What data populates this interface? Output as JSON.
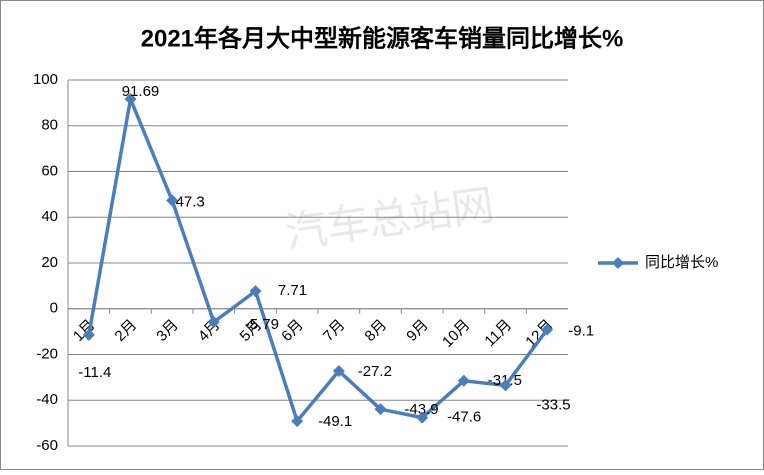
{
  "chart_data": {
    "type": "line",
    "title": "2021年各月大中型新能源客车销量同比增长%",
    "watermark": "汽车总站网",
    "categories": [
      "1月",
      "2月",
      "3月",
      "4月",
      "5月",
      "6月",
      "7月",
      "8月",
      "9月",
      "10月",
      "11月",
      "12月"
    ],
    "series": [
      {
        "name": "同比增长%",
        "color": "#4a7ebb",
        "values": [
          -11.4,
          91.69,
          47.3,
          -5.79,
          7.71,
          -49.1,
          -27.2,
          -43.9,
          -47.6,
          -31.5,
          -33.5,
          -9.1
        ]
      }
    ],
    "ylim": [
      -60,
      100
    ],
    "yticks": [
      -60,
      -40,
      -20,
      0,
      20,
      40,
      60,
      80,
      100
    ],
    "grid": true,
    "legend": "right"
  }
}
